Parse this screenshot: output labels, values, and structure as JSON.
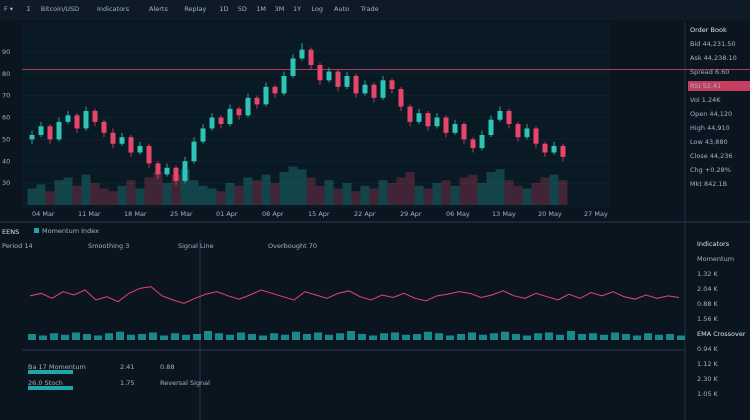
{
  "toolbar": [
    "F ▾",
    "Σ",
    "Bitcoin/USD",
    "Indicators",
    "Alerts",
    "Replay",
    "1D",
    "5D",
    "1M",
    "3M",
    "1Y",
    "Log",
    "Auto",
    "Trade"
  ],
  "price_chart": {
    "type": "candlestick",
    "ylim": [
      20,
      100
    ],
    "yticks": [
      90,
      80,
      70,
      60,
      50,
      40,
      30
    ],
    "vlim": [
      0,
      40
    ],
    "up_color": "#2ec4b6",
    "down_color": "#e8456b",
    "level": 82,
    "candles": [
      [
        50,
        54,
        48,
        52
      ],
      [
        52,
        58,
        51,
        56
      ],
      [
        56,
        57,
        48,
        50
      ],
      [
        50,
        60,
        49,
        58
      ],
      [
        58,
        63,
        57,
        61
      ],
      [
        61,
        62,
        53,
        55
      ],
      [
        55,
        65,
        54,
        63
      ],
      [
        63,
        64,
        56,
        58
      ],
      [
        58,
        59,
        51,
        53
      ],
      [
        53,
        55,
        46,
        48
      ],
      [
        48,
        53,
        47,
        51
      ],
      [
        51,
        52,
        42,
        44
      ],
      [
        44,
        49,
        43,
        47
      ],
      [
        47,
        48,
        37,
        39
      ],
      [
        39,
        40,
        32,
        34
      ],
      [
        34,
        39,
        33,
        37
      ],
      [
        37,
        38,
        29,
        31
      ],
      [
        31,
        42,
        30,
        40
      ],
      [
        40,
        51,
        39,
        49
      ],
      [
        49,
        57,
        48,
        55
      ],
      [
        55,
        62,
        54,
        60
      ],
      [
        60,
        61,
        55,
        57
      ],
      [
        57,
        66,
        56,
        64
      ],
      [
        64,
        65,
        59,
        61
      ],
      [
        61,
        71,
        60,
        69
      ],
      [
        69,
        70,
        64,
        66
      ],
      [
        66,
        76,
        65,
        74
      ],
      [
        74,
        75,
        69,
        71
      ],
      [
        71,
        81,
        70,
        79
      ],
      [
        79,
        89,
        78,
        87
      ],
      [
        87,
        94,
        86,
        91
      ],
      [
        91,
        92,
        82,
        84
      ],
      [
        84,
        85,
        75,
        77
      ],
      [
        77,
        83,
        76,
        81
      ],
      [
        81,
        82,
        72,
        74
      ],
      [
        74,
        81,
        73,
        79
      ],
      [
        79,
        80,
        69,
        71
      ],
      [
        71,
        77,
        70,
        75
      ],
      [
        75,
        76,
        67,
        69
      ],
      [
        69,
        79,
        68,
        77
      ],
      [
        77,
        78,
        71,
        73
      ],
      [
        73,
        74,
        63,
        65
      ],
      [
        65,
        66,
        56,
        58
      ],
      [
        58,
        64,
        57,
        62
      ],
      [
        62,
        63,
        54,
        56
      ],
      [
        56,
        62,
        55,
        60
      ],
      [
        60,
        61,
        51,
        53
      ],
      [
        53,
        59,
        52,
        57
      ],
      [
        57,
        58,
        48,
        50
      ],
      [
        50,
        51,
        44,
        46
      ],
      [
        46,
        54,
        45,
        52
      ],
      [
        52,
        61,
        51,
        59
      ],
      [
        59,
        65,
        58,
        63
      ],
      [
        63,
        64,
        55,
        57
      ],
      [
        57,
        58,
        49,
        51
      ],
      [
        51,
        57,
        50,
        55
      ],
      [
        55,
        56,
        46,
        48
      ],
      [
        48,
        49,
        42,
        44
      ],
      [
        44,
        49,
        43,
        47
      ],
      [
        47,
        48,
        40,
        42
      ]
    ],
    "volume": [
      12,
      15,
      10,
      18,
      20,
      14,
      22,
      16,
      12,
      10,
      14,
      18,
      12,
      20,
      24,
      16,
      22,
      26,
      18,
      14,
      12,
      10,
      16,
      14,
      20,
      18,
      22,
      16,
      24,
      28,
      26,
      20,
      14,
      18,
      12,
      16,
      10,
      14,
      12,
      18,
      16,
      20,
      24,
      14,
      12,
      16,
      18,
      14,
      20,
      22,
      16,
      24,
      26,
      18,
      14,
      12,
      16,
      20,
      22,
      18
    ],
    "time_labels": [
      "04 Mar",
      "11 Mar",
      "18 Mar",
      "25 Mar",
      "01 Apr",
      "08 Apr",
      "15 Apr",
      "22 Apr",
      "29 Apr",
      "06 May",
      "13 May",
      "20 May",
      "27 May"
    ]
  },
  "right_panel": [
    "Order Book",
    "Bid 44,231.50",
    "Ask 44,238.10",
    "Spread 6.60",
    "RSI 52.41",
    "Vol 1.24K",
    "Open 44,120",
    "High 44,910",
    "Low 43,880",
    "Close 44,236",
    "Chg +0.28%",
    "Mkt 842.1B"
  ],
  "lower_pane": {
    "title": "EENS",
    "legend": "Momentum Index",
    "sub": "Period 14",
    "labels": [
      "Smoothing 3",
      "Signal Line",
      "Overbought 70"
    ],
    "ylim": [
      20,
      80
    ],
    "bar_lim": [
      0,
      20
    ],
    "line_color": "#e8456b",
    "bar_color": "#1fa6a8",
    "line": [
      55,
      58,
      52,
      60,
      56,
      62,
      50,
      54,
      48,
      58,
      64,
      66,
      55,
      50,
      46,
      52,
      57,
      60,
      55,
      51,
      56,
      62,
      58,
      54,
      50,
      60,
      56,
      52,
      58,
      61,
      54,
      50,
      56,
      53,
      58,
      52,
      49,
      55,
      57,
      60,
      58,
      53,
      56,
      61,
      55,
      52,
      58,
      54,
      50,
      57,
      52,
      59,
      55,
      60,
      54,
      51,
      56,
      52,
      55,
      53
    ],
    "bars": [
      8,
      6,
      9,
      7,
      10,
      8,
      6,
      9,
      11,
      7,
      8,
      10,
      6,
      9,
      7,
      8,
      12,
      9,
      7,
      10,
      8,
      6,
      9,
      7,
      11,
      8,
      10,
      7,
      9,
      12,
      8,
      6,
      9,
      10,
      7,
      8,
      11,
      9,
      6,
      8,
      10,
      7,
      9,
      11,
      8,
      6,
      9,
      10,
      7,
      12,
      8,
      9,
      7,
      10,
      8,
      6,
      9,
      7,
      8,
      6
    ]
  },
  "lower_right": [
    "Indicators",
    "Momentum",
    "1.32 K",
    "2.04 K",
    "0.88 K",
    "1.56 K",
    "EMA Crossover",
    "0.94 K",
    "1.12 K",
    "2.30 K",
    "1.05 K"
  ],
  "bottom_table": [
    [
      "Ba 17 Momentum",
      "2.41",
      "0.88"
    ],
    [
      "26.0 Stoch",
      "1.75",
      "Reversal Signal"
    ]
  ]
}
